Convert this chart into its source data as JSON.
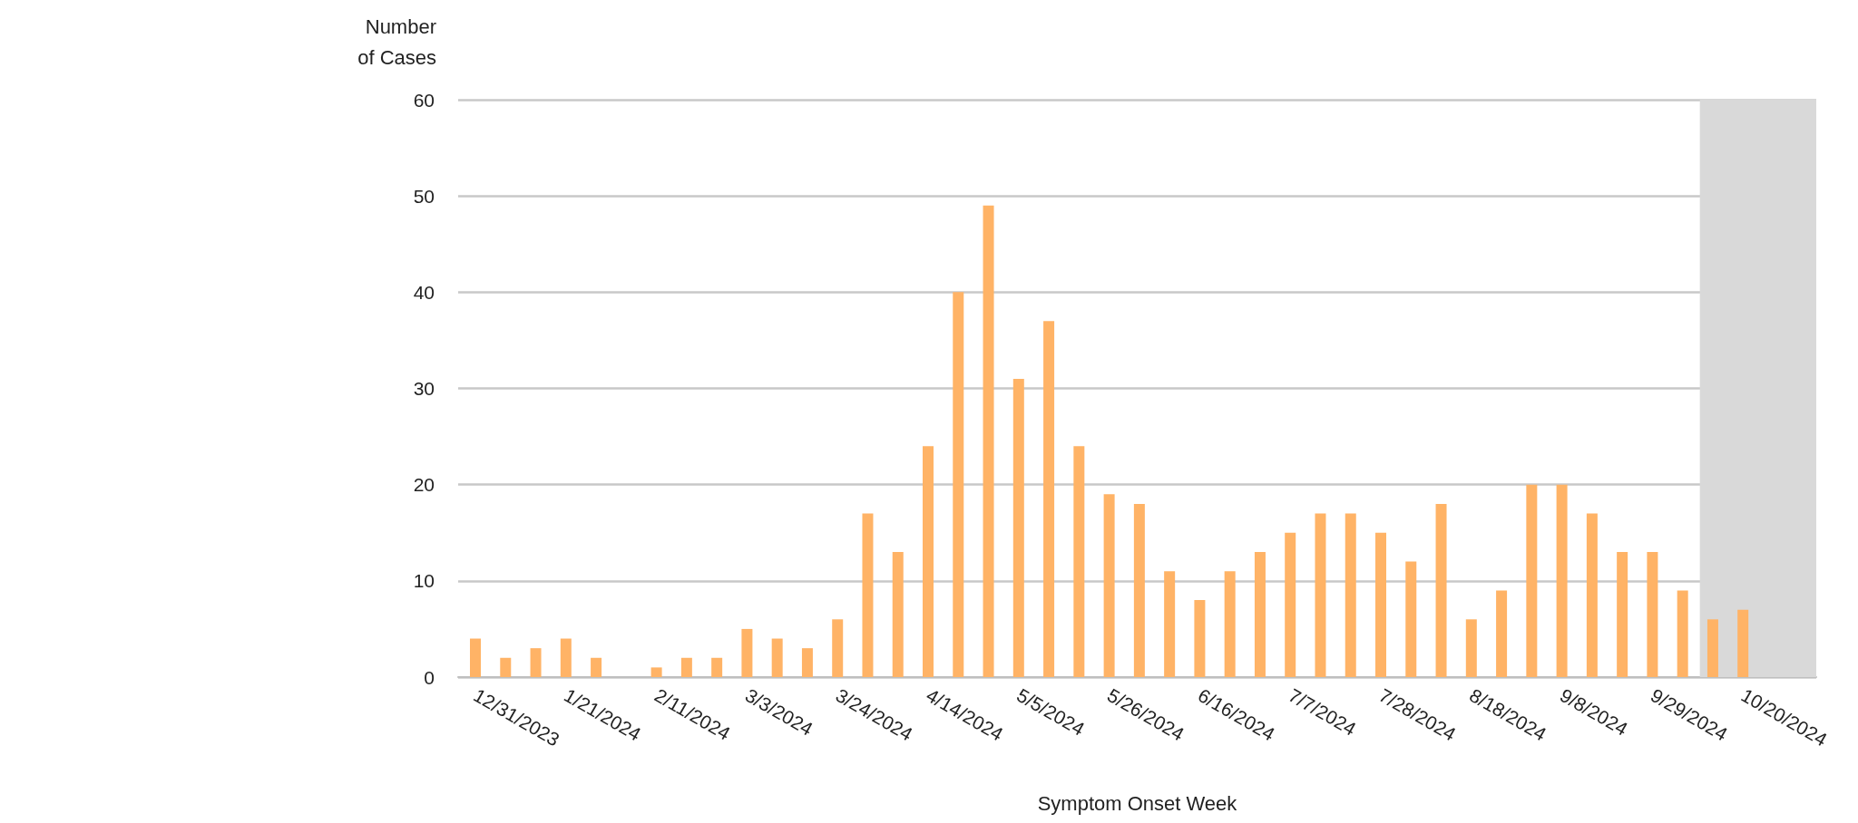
{
  "chart_data": {
    "type": "bar",
    "xlabel": "Symptom Onset Week",
    "ylabel": "Number\nof Cases",
    "x": [
      "2023-12-31",
      "2024-01-07",
      "2024-01-14",
      "2024-01-21",
      "2024-01-28",
      "2024-02-04",
      "2024-02-11",
      "2024-02-18",
      "2024-02-25",
      "2024-03-03",
      "2024-03-10",
      "2024-03-17",
      "2024-03-24",
      "2024-03-31",
      "2024-04-07",
      "2024-04-14",
      "2024-04-21",
      "2024-04-28",
      "2024-05-05",
      "2024-05-12",
      "2024-05-19",
      "2024-05-26",
      "2024-06-02",
      "2024-06-09",
      "2024-06-16",
      "2024-06-23",
      "2024-06-30",
      "2024-07-07",
      "2024-07-14",
      "2024-07-21",
      "2024-07-28",
      "2024-08-04",
      "2024-08-11",
      "2024-08-18",
      "2024-08-25",
      "2024-09-01",
      "2024-09-08",
      "2024-09-15",
      "2024-09-22",
      "2024-09-29",
      "2024-10-06",
      "2024-10-13",
      "2024-10-20"
    ],
    "values": [
      4,
      2,
      3,
      4,
      2,
      0,
      1,
      2,
      2,
      5,
      4,
      3,
      6,
      17,
      13,
      24,
      40,
      49,
      31,
      37,
      24,
      19,
      18,
      11,
      8,
      11,
      13,
      15,
      17,
      17,
      15,
      12,
      18,
      6,
      9,
      20,
      20,
      17,
      13,
      13,
      9,
      6,
      7
    ],
    "color": "#ffb366",
    "xlim": [
      "2023-12-27",
      "2024-11-06"
    ],
    "xticks": [
      {
        "value": "2023-12-31",
        "label": "12/31/2023"
      },
      {
        "value": "2024-01-21",
        "label": "1/21/2024"
      },
      {
        "value": "2024-02-11",
        "label": "2/11/2024"
      },
      {
        "value": "2024-03-03",
        "label": "3/3/2024"
      },
      {
        "value": "2024-03-24",
        "label": "3/24/2024"
      },
      {
        "value": "2024-04-14",
        "label": "4/14/2024"
      },
      {
        "value": "2024-05-05",
        "label": "5/5/2024"
      },
      {
        "value": "2024-05-26",
        "label": "5/26/2024"
      },
      {
        "value": "2024-06-16",
        "label": "6/16/2024"
      },
      {
        "value": "2024-07-07",
        "label": "7/7/2024"
      },
      {
        "value": "2024-07-28",
        "label": "7/28/2024"
      },
      {
        "value": "2024-08-18",
        "label": "8/18/2024"
      },
      {
        "value": "2024-09-08",
        "label": "9/8/2024"
      },
      {
        "value": "2024-09-29",
        "label": "9/29/2024"
      },
      {
        "value": "2024-10-20",
        "label": "10/20/2024"
      }
    ],
    "ylim": [
      0,
      60
    ],
    "yticks": [
      0,
      10,
      20,
      30,
      40,
      50,
      60
    ],
    "grid": "y",
    "bands": [
      {
        "axis": "x",
        "from": "2024-10-10",
        "to": "2024-11-06",
        "color": "#d9d9d9"
      }
    ]
  }
}
